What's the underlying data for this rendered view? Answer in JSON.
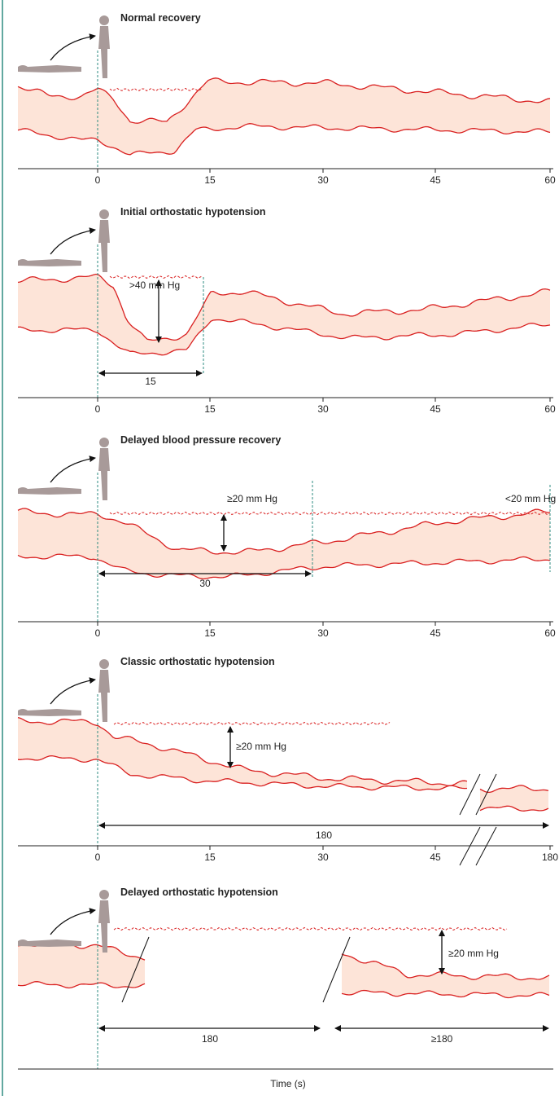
{
  "panels": [
    {
      "title": "Normal recovery",
      "ticks": [
        0,
        15,
        30,
        45,
        60
      ]
    },
    {
      "title": "Initial orthostatic hypotension",
      "annotations": [
        ">40 mm Hg",
        "15"
      ],
      "ticks": [
        0,
        15,
        30,
        45,
        60
      ]
    },
    {
      "title": "Delayed blood pressure recovery",
      "annotations": [
        "≥20 mm Hg",
        "<20 mm Hg",
        "30"
      ],
      "ticks": [
        0,
        15,
        30,
        45,
        60
      ]
    },
    {
      "title": "Classic orthostatic hypotension",
      "annotations": [
        "≥20 mm Hg",
        "180"
      ],
      "ticks": [
        0,
        15,
        30,
        45,
        180
      ]
    },
    {
      "title": "Delayed orthostatic hypotension",
      "annotations": [
        "≥20 mm Hg",
        "180",
        "≥180"
      ]
    }
  ],
  "axis_label": "Time (s)"
}
